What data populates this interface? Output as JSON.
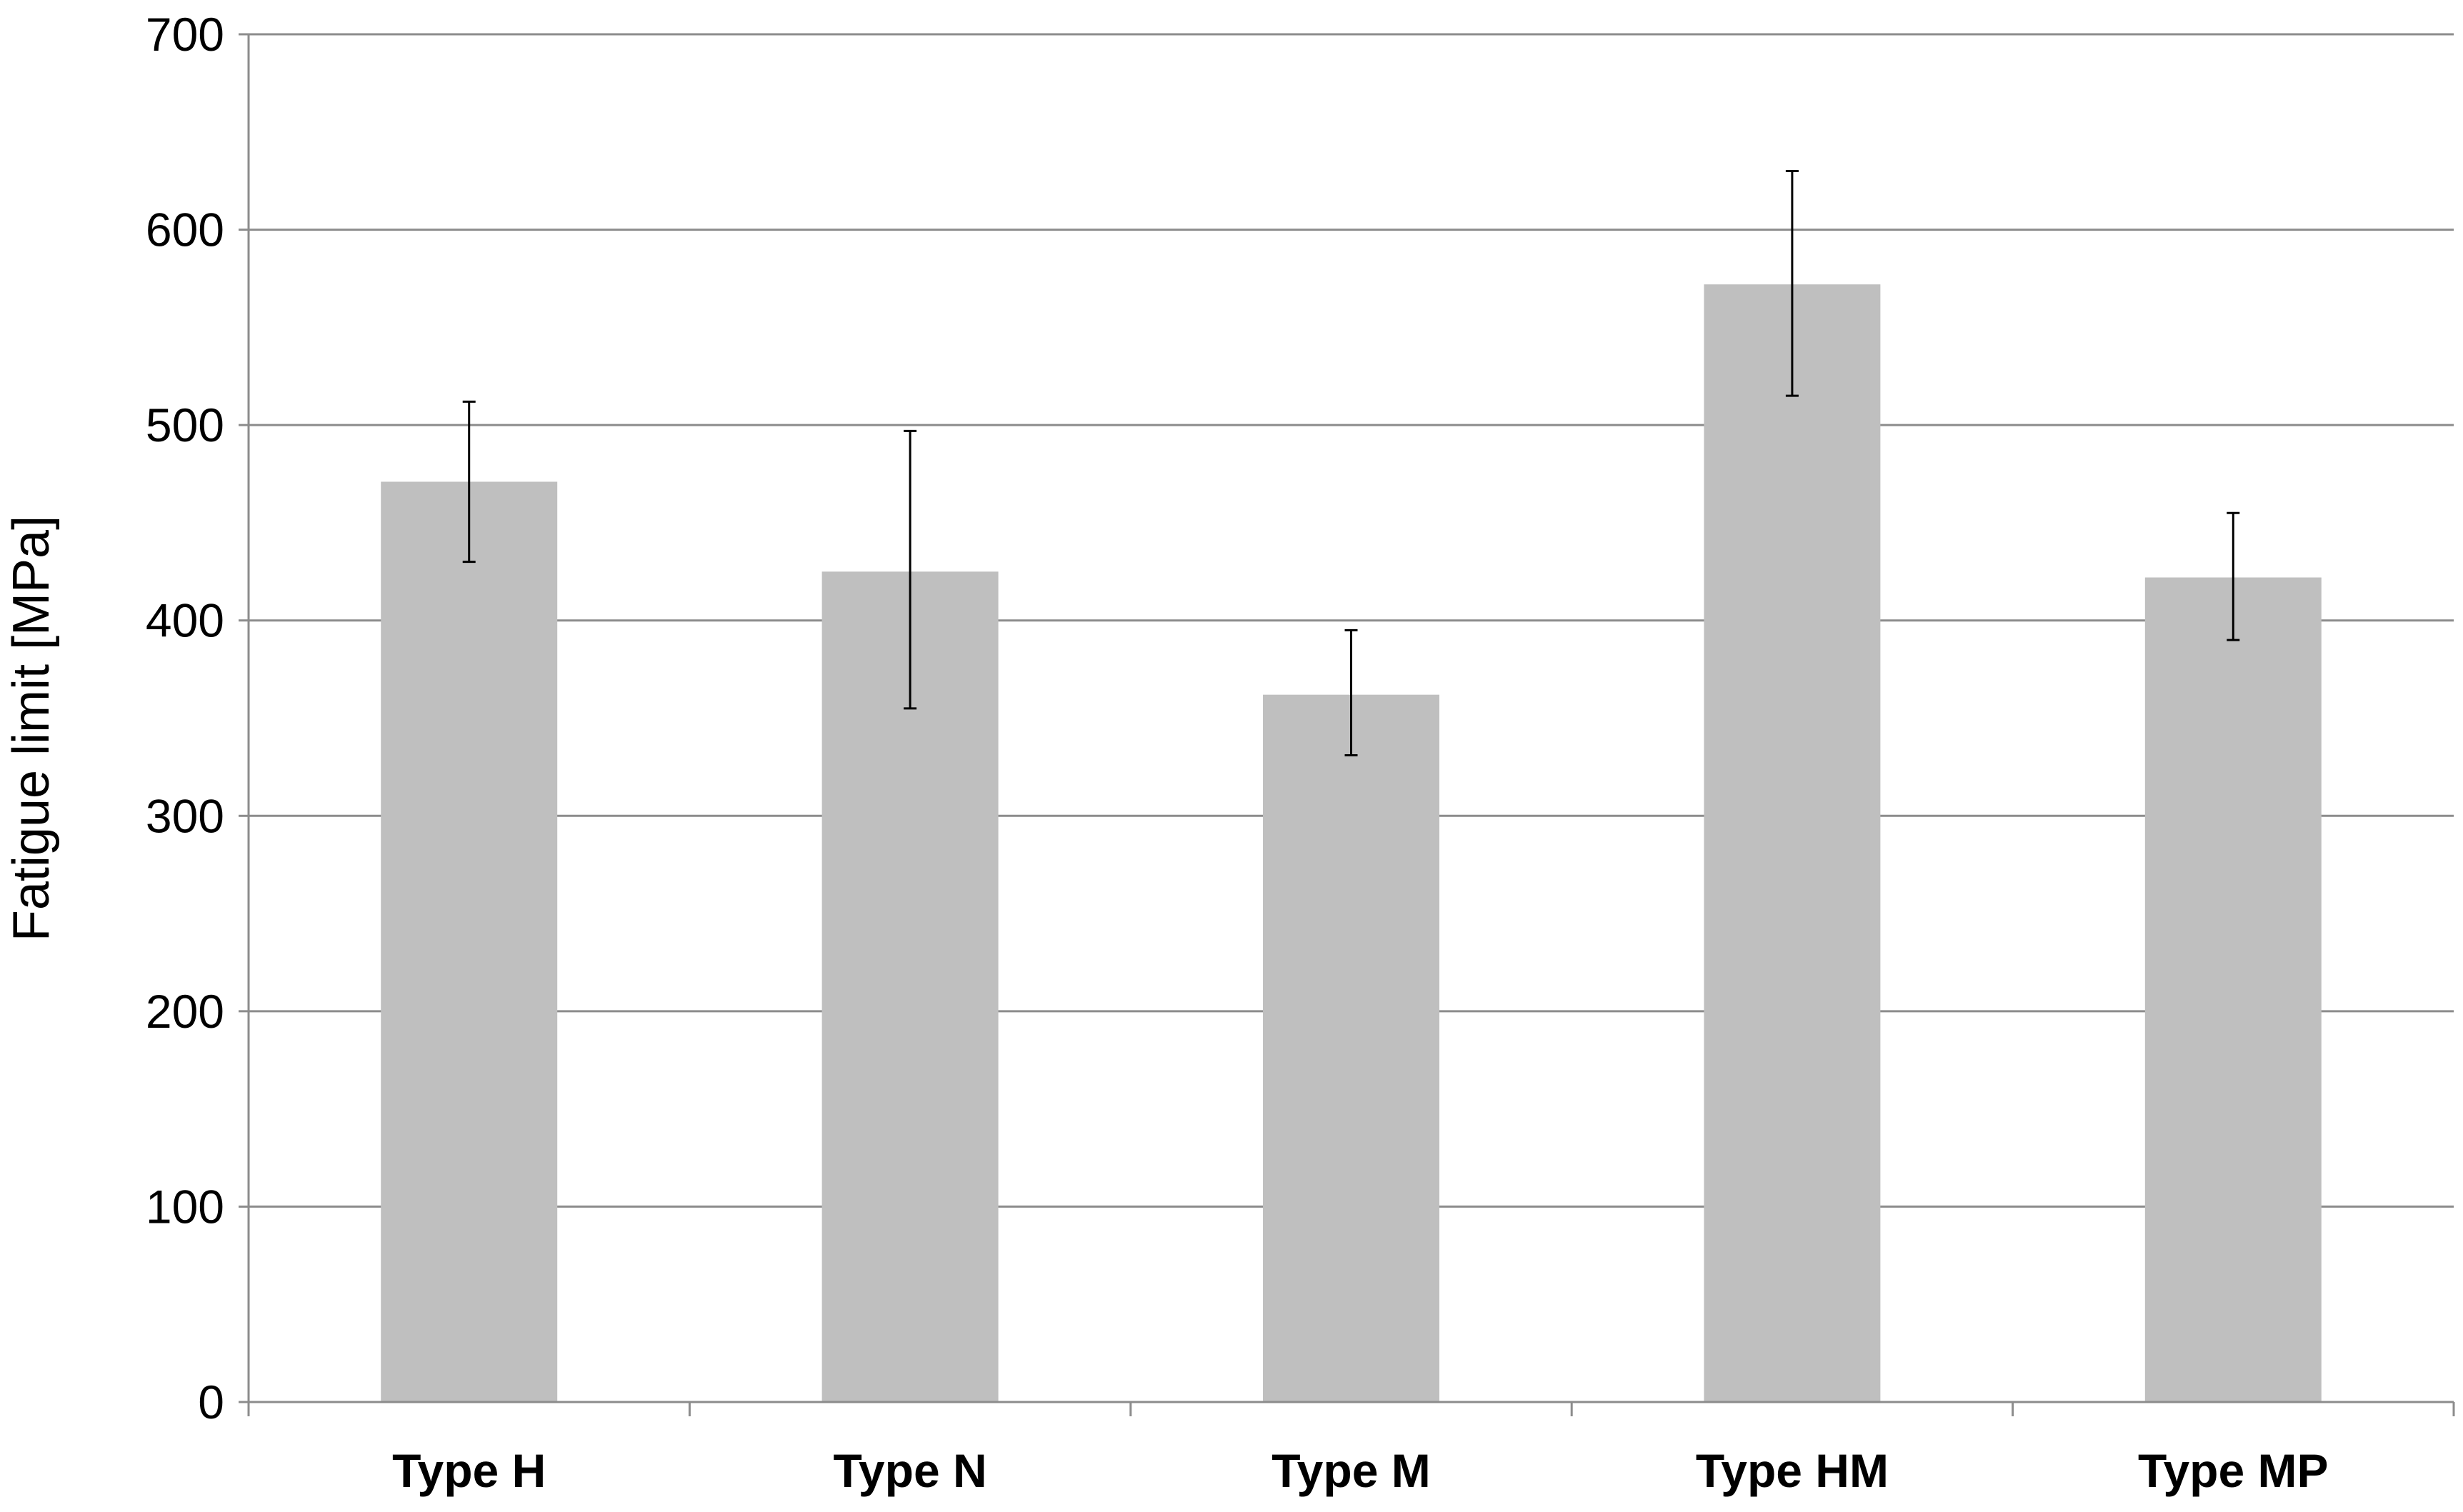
{
  "chart_data": {
    "type": "bar",
    "title": "",
    "xlabel": "",
    "ylabel": "Fatigue limit [MPa]",
    "categories": [
      "Type H",
      "Type N",
      "Type M",
      "Type HM",
      "Type MP"
    ],
    "series": [
      {
        "values": [
          471,
          425,
          362,
          572,
          422
        ],
        "error_low": [
          430,
          355,
          331,
          515,
          390
        ],
        "error_high": [
          512,
          497,
          395,
          630,
          455
        ]
      }
    ],
    "ylim": [
      0,
      700
    ],
    "yticks": [
      0,
      100,
      200,
      300,
      400,
      500,
      600,
      700
    ],
    "ytick_labels": [
      "0",
      "100",
      "200",
      "300",
      "400",
      "500",
      "600",
      "700"
    ],
    "grid": true,
    "legend": "none",
    "colors": {
      "bar": "#bfbfbf",
      "grid": "#8c8c8c",
      "axis": "#8c8c8c",
      "error_bar": "#000000"
    }
  }
}
